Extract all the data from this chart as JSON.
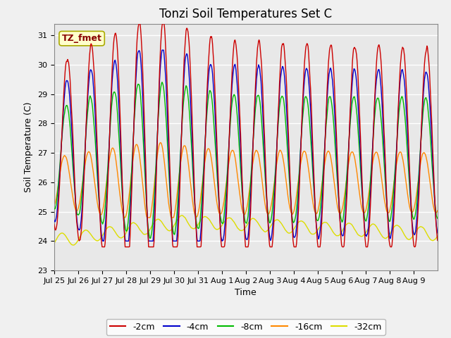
{
  "title": "Tonzi Soil Temperatures Set C",
  "xlabel": "Time",
  "ylabel": "Soil Temperature (C)",
  "ylim": [
    23.0,
    31.4
  ],
  "yticks": [
    23.0,
    24.0,
    25.0,
    26.0,
    27.0,
    28.0,
    29.0,
    30.0,
    31.0
  ],
  "series_colors": {
    "-2cm": "#cc0000",
    "-4cm": "#0000cc",
    "-8cm": "#00bb00",
    "-16cm": "#ff8800",
    "-32cm": "#dddd00"
  },
  "xtick_labels": [
    "Jul 25",
    "Jul 26",
    "Jul 27",
    "Jul 28",
    "Jul 29",
    "Jul 30",
    "Jul 31",
    "Aug 1",
    "Aug 2",
    "Aug 3",
    "Aug 4",
    "Aug 5",
    "Aug 6",
    "Aug 7",
    "Aug 8",
    "Aug 9"
  ],
  "annotation_text": "TZ_fmet",
  "annotation_color": "#880000",
  "annotation_bg": "#ffffcc",
  "annotation_edge": "#aaaa00",
  "background_color": "#e8e8e8",
  "fig_facecolor": "#f0f0f0",
  "grid_color": "#ffffff",
  "linewidth": 1.0,
  "title_fontsize": 12,
  "label_fontsize": 9,
  "tick_fontsize": 8,
  "legend_fontsize": 9
}
